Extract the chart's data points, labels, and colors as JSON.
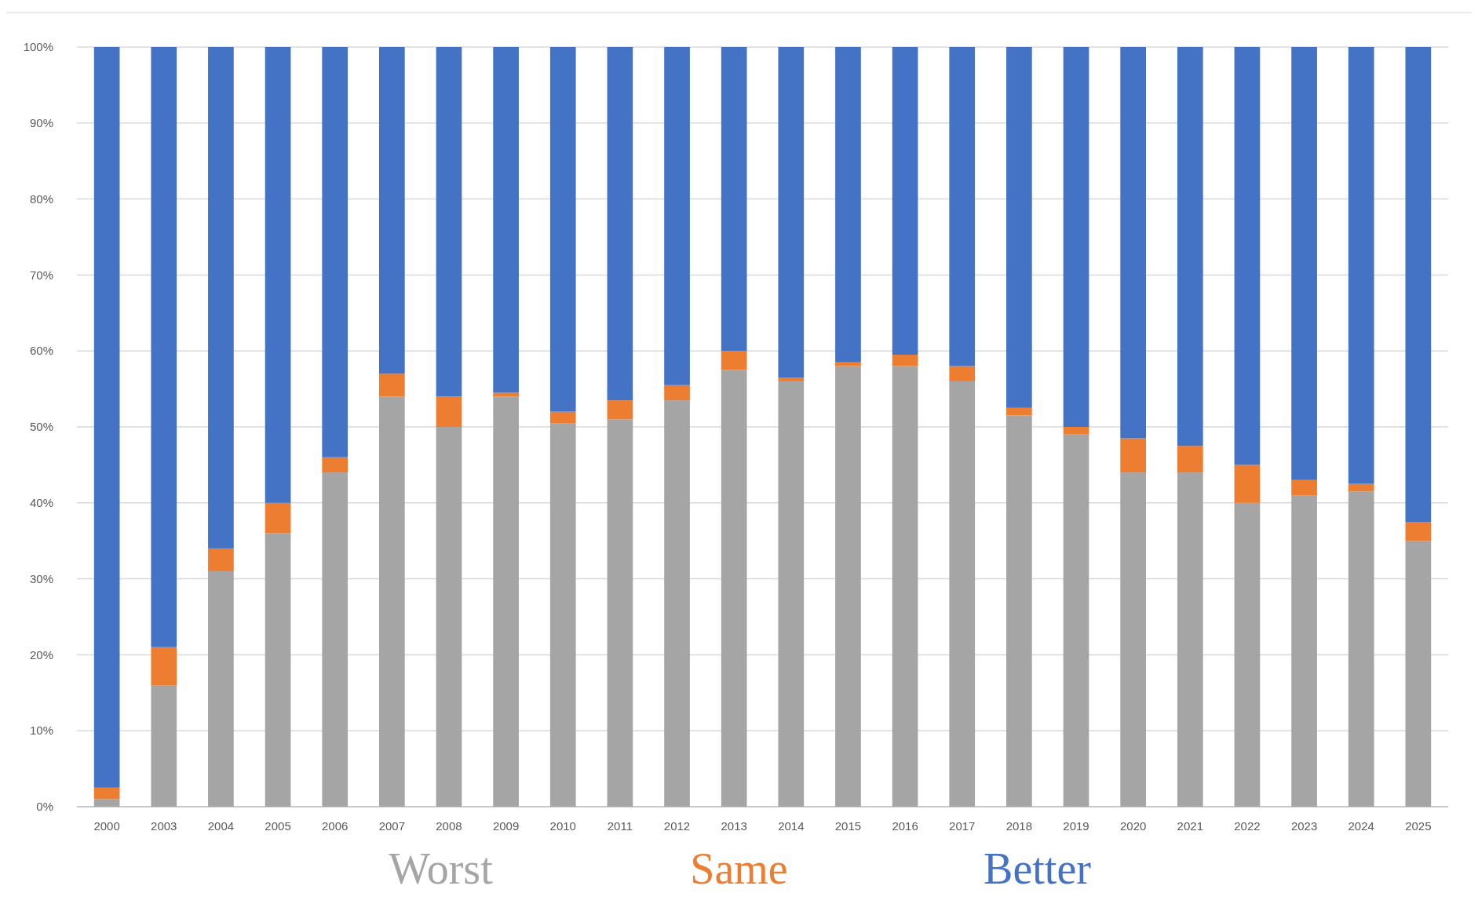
{
  "chart_data": {
    "type": "bar",
    "stacked": true,
    "categories": [
      "2000",
      "2003",
      "2004",
      "2005",
      "2006",
      "2007",
      "2008",
      "2009",
      "2010",
      "2011",
      "2012",
      "2013",
      "2014",
      "2015",
      "2016",
      "2017",
      "2018",
      "2019",
      "2020",
      "2021",
      "2022",
      "2023",
      "2024",
      "2025"
    ],
    "series": [
      {
        "name": "Worst",
        "color": "#a5a5a5",
        "values": [
          1,
          16,
          31,
          36,
          44,
          54,
          50,
          54,
          50.5,
          51,
          53.5,
          57.5,
          56,
          58,
          58,
          56,
          51.5,
          49,
          44,
          44,
          40,
          41,
          41.5,
          35
        ]
      },
      {
        "name": "Same",
        "color": "#ed7d31",
        "values": [
          1.5,
          5,
          3,
          4,
          2,
          3,
          4,
          0.5,
          1.5,
          2.5,
          2,
          2.5,
          0.5,
          0.5,
          1.5,
          2,
          1,
          1,
          4.5,
          3.5,
          5,
          2,
          1,
          2.5
        ]
      },
      {
        "name": "Better",
        "color": "#4472c4",
        "values": [
          97.5,
          79,
          66,
          60,
          54,
          43,
          46,
          45.5,
          48,
          46.5,
          44.5,
          40,
          43.5,
          41.5,
          40.5,
          42,
          47.5,
          50,
          51.5,
          52.5,
          55,
          57,
          57.5,
          62.5
        ]
      }
    ],
    "ylim": [
      0,
      100
    ],
    "yticks": [
      {
        "value": 0,
        "label": "0%"
      },
      {
        "value": 10,
        "label": "10%"
      },
      {
        "value": 20,
        "label": "20%"
      },
      {
        "value": 30,
        "label": "30%"
      },
      {
        "value": 40,
        "label": "40%"
      },
      {
        "value": 50,
        "label": "50%"
      },
      {
        "value": 60,
        "label": "60%"
      },
      {
        "value": 70,
        "label": "70%"
      },
      {
        "value": 80,
        "label": "80%"
      },
      {
        "value": 90,
        "label": "90%"
      },
      {
        "value": 100,
        "label": "100%"
      }
    ],
    "grid": "y",
    "legend": "bottom"
  }
}
